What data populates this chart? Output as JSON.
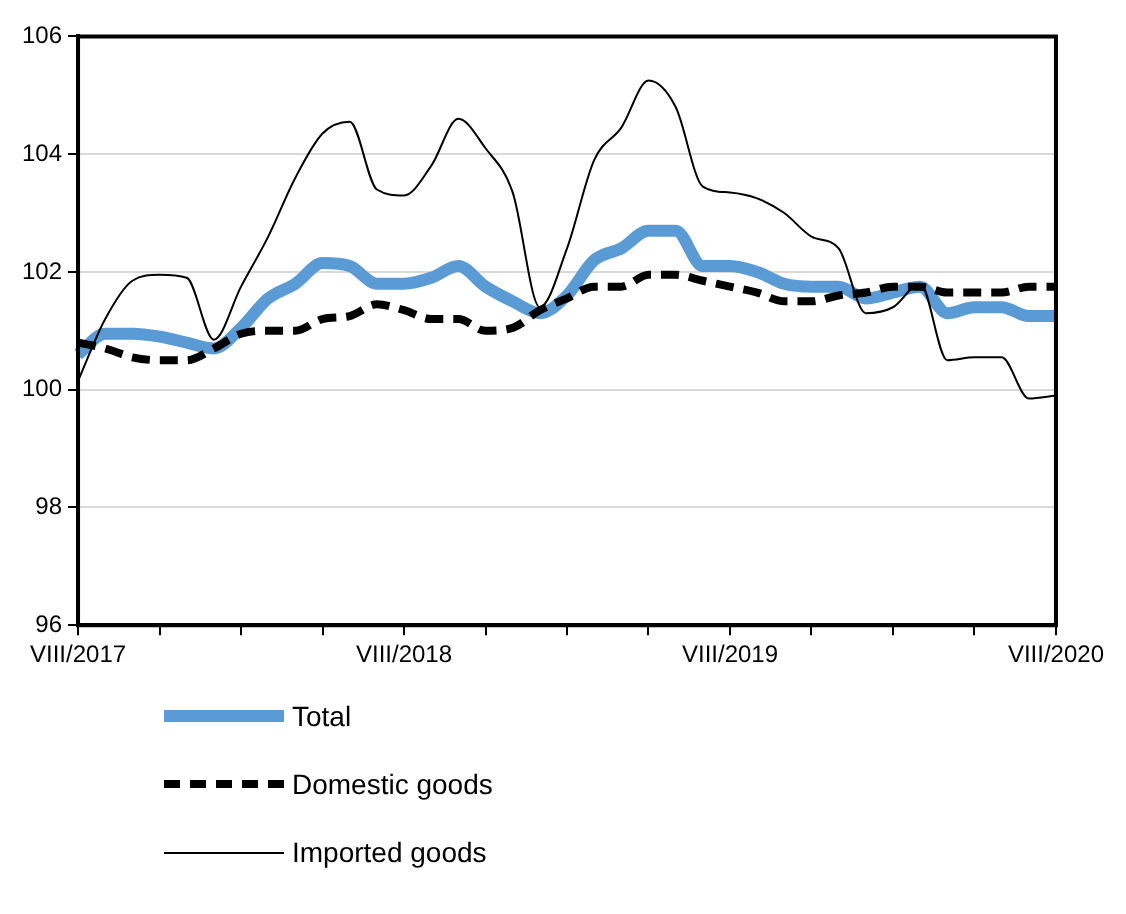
{
  "chart_data": {
    "type": "line",
    "categories": [
      "VIII/2017",
      null,
      null,
      null,
      null,
      null,
      null,
      null,
      null,
      null,
      null,
      null,
      "VIII/2018",
      null,
      null,
      null,
      null,
      null,
      null,
      null,
      null,
      null,
      null,
      null,
      "VIII/2019",
      null,
      null,
      null,
      null,
      null,
      null,
      null,
      null,
      null,
      null,
      null,
      "VIII/2020"
    ],
    "series": [
      {
        "name": "Total",
        "color": "#5b9bd5",
        "line_style": "solid",
        "values": [
          100.6,
          100.95,
          100.95,
          100.9,
          100.8,
          100.7,
          101.05,
          101.55,
          101.8,
          102.15,
          102.1,
          101.8,
          101.8,
          101.9,
          102.1,
          101.75,
          101.5,
          101.3,
          101.6,
          102.2,
          102.4,
          102.7,
          102.7,
          102.1,
          102.1,
          102.0,
          101.8,
          101.75,
          101.75,
          101.55,
          101.65,
          101.75,
          101.3,
          101.4,
          101.4,
          101.25,
          101.25
        ]
      },
      {
        "name": "Domestic goods",
        "color": "#000000",
        "line_style": "dashed",
        "values": [
          100.8,
          100.7,
          100.55,
          100.5,
          100.5,
          100.7,
          100.95,
          101.0,
          101.0,
          101.2,
          101.25,
          101.45,
          101.35,
          101.2,
          101.2,
          101.0,
          101.05,
          101.35,
          101.55,
          101.75,
          101.75,
          101.95,
          101.95,
          101.85,
          101.75,
          101.65,
          101.5,
          101.5,
          101.6,
          101.65,
          101.75,
          101.75,
          101.65,
          101.65,
          101.65,
          101.75,
          101.75
        ]
      },
      {
        "name": "Imported goods",
        "color": "#000000",
        "line_style": "solid",
        "values": [
          100.15,
          101.2,
          101.85,
          101.95,
          101.9,
          100.85,
          101.75,
          102.6,
          103.6,
          104.35,
          104.55,
          103.4,
          103.3,
          103.8,
          104.6,
          104.1,
          103.35,
          101.4,
          102.4,
          103.9,
          104.45,
          105.25,
          104.8,
          103.45,
          103.35,
          103.25,
          103.0,
          102.6,
          102.4,
          101.3,
          101.4,
          101.8,
          100.5,
          100.55,
          100.55,
          99.85,
          99.9
        ]
      }
    ],
    "ylim": [
      96,
      106
    ],
    "yticks": [
      96,
      98,
      100,
      102,
      104,
      106
    ],
    "grid": "y",
    "legend": "bottom",
    "marker": "none"
  }
}
